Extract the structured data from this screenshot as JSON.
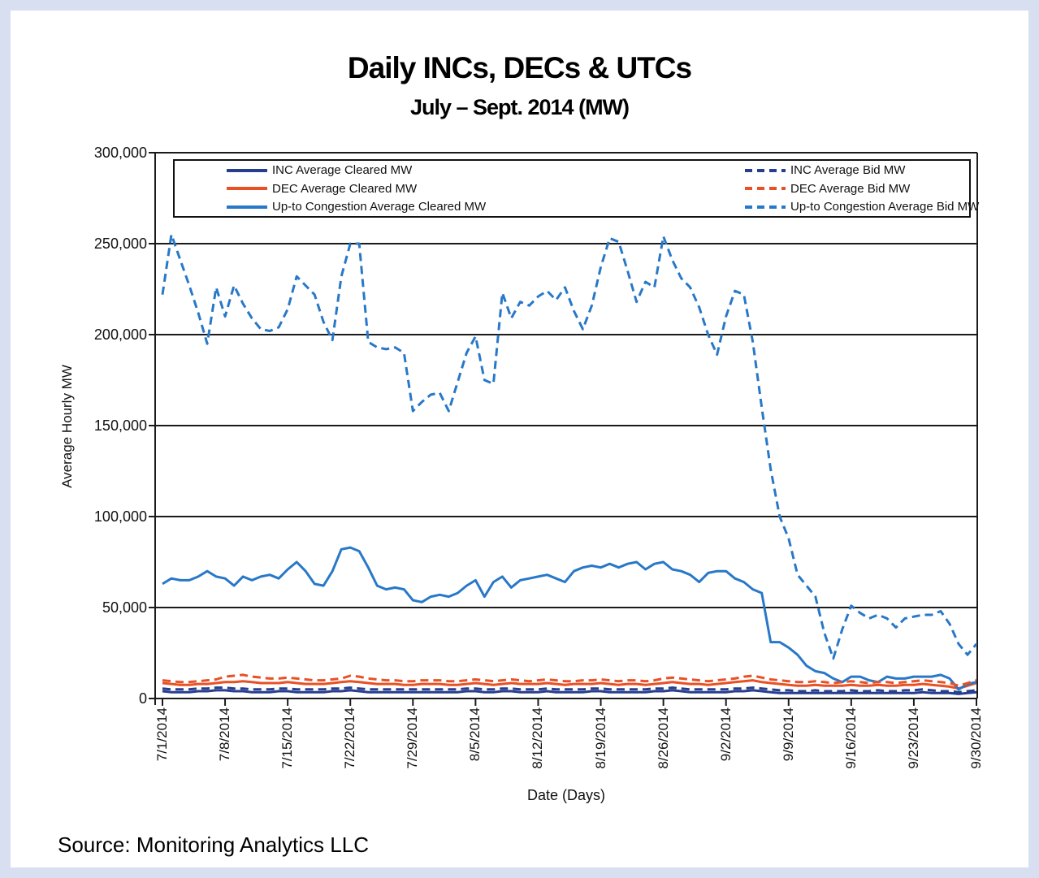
{
  "page": {
    "title": "Daily INCs, DECs & UTCs",
    "subtitle": "July – Sept. 2014 (MW)",
    "source": "Source: Monitoring Analytics LLC"
  },
  "chart_data": {
    "type": "line",
    "title": "Daily INCs, DECs & UTCs",
    "subtitle": "July – Sept. 2014 (MW)",
    "xlabel": "Date (Days)",
    "ylabel": "Average Hourly MW",
    "ylim": [
      0,
      300000
    ],
    "grid": "horizontal",
    "legend_position": "top-inside",
    "axis_color": "#1a1a1a",
    "y_ticks": [
      {
        "value": 0,
        "label": "0"
      },
      {
        "value": 50000,
        "label": "50,000"
      },
      {
        "value": 100000,
        "label": "100,000"
      },
      {
        "value": 150000,
        "label": "150,000"
      },
      {
        "value": 200000,
        "label": "200,000"
      },
      {
        "value": 250000,
        "label": "250,000"
      },
      {
        "value": 300000,
        "label": "300,000"
      }
    ],
    "x_ticks": [
      {
        "day_index": 0,
        "label": "7/1/2014"
      },
      {
        "day_index": 7,
        "label": "7/8/2014"
      },
      {
        "day_index": 14,
        "label": "7/15/2014"
      },
      {
        "day_index": 21,
        "label": "7/22/2014"
      },
      {
        "day_index": 28,
        "label": "7/29/2014"
      },
      {
        "day_index": 35,
        "label": "8/5/2014"
      },
      {
        "day_index": 42,
        "label": "8/12/2014"
      },
      {
        "day_index": 49,
        "label": "8/19/2014"
      },
      {
        "day_index": 56,
        "label": "8/26/2014"
      },
      {
        "day_index": 63,
        "label": "9/2/2014"
      },
      {
        "day_index": 70,
        "label": "9/9/2014"
      },
      {
        "day_index": 77,
        "label": "9/16/2014"
      },
      {
        "day_index": 84,
        "label": "9/23/2014"
      },
      {
        "day_index": 91,
        "label": "9/30/2014"
      }
    ],
    "num_days": 92,
    "x_range_labels": [
      "7/1/2014",
      "9/30/2014"
    ],
    "legend_order": [
      "inc_cleared",
      "inc_bid",
      "dec_cleared",
      "dec_bid",
      "utc_cleared",
      "utc_bid"
    ],
    "series": [
      {
        "id": "inc_cleared",
        "name": "INC Average Cleared MW",
        "color": "#273e8f",
        "dashed": false,
        "values": [
          4000,
          3500,
          3500,
          3500,
          4000,
          4000,
          4500,
          4500,
          4000,
          4000,
          3500,
          3500,
          3500,
          4000,
          4000,
          3500,
          3500,
          3500,
          3500,
          4000,
          4000,
          4500,
          4000,
          3500,
          3500,
          3500,
          3500,
          3500,
          3500,
          3500,
          3500,
          3500,
          3500,
          3500,
          4000,
          4000,
          3500,
          3500,
          4000,
          4000,
          3500,
          3500,
          3500,
          4000,
          3500,
          3500,
          3500,
          3500,
          4000,
          4000,
          3500,
          3500,
          3500,
          3500,
          3500,
          4000,
          4000,
          4500,
          4000,
          3500,
          3500,
          3500,
          3500,
          3500,
          4000,
          4000,
          4500,
          4000,
          3500,
          3000,
          3000,
          3000,
          3000,
          3000,
          3000,
          3000,
          3000,
          3000,
          3000,
          3000,
          3000,
          3000,
          3000,
          3000,
          3000,
          3500,
          3000,
          3000,
          3000,
          2500,
          3000,
          3500
        ]
      },
      {
        "id": "dec_cleared",
        "name": "DEC Average Cleared MW",
        "color": "#e85026",
        "dashed": false,
        "values": [
          8500,
          8000,
          7500,
          7500,
          8000,
          8000,
          8500,
          9000,
          9000,
          9500,
          9000,
          8500,
          8500,
          8500,
          9000,
          8500,
          8000,
          8000,
          8000,
          8500,
          9000,
          9500,
          9000,
          8500,
          8000,
          8000,
          8000,
          7500,
          7500,
          8000,
          8000,
          8000,
          7500,
          7500,
          8000,
          8500,
          8000,
          7500,
          8000,
          8500,
          8000,
          8000,
          8000,
          8500,
          8000,
          7500,
          8000,
          8000,
          8000,
          8500,
          8000,
          7500,
          8000,
          8000,
          7500,
          8000,
          8500,
          9000,
          8500,
          8000,
          8000,
          7500,
          8000,
          8500,
          9000,
          9500,
          10000,
          9000,
          8500,
          8000,
          7500,
          7000,
          7000,
          7500,
          7000,
          7000,
          7000,
          7500,
          7000,
          7000,
          7500,
          7000,
          7000,
          7500,
          7500,
          8000,
          7500,
          7000,
          6500,
          5500,
          7000,
          8500
        ]
      },
      {
        "id": "utc_cleared",
        "name": "Up-to Congestion Average Cleared MW",
        "color": "#2878c8",
        "dashed": false,
        "values": [
          63000,
          66000,
          65000,
          65000,
          67000,
          70000,
          67000,
          66000,
          62000,
          67000,
          65000,
          67000,
          68000,
          66000,
          71000,
          75000,
          70000,
          63000,
          62000,
          70000,
          82000,
          83000,
          81000,
          72000,
          62000,
          60000,
          61000,
          60000,
          54000,
          53000,
          56000,
          57000,
          56000,
          58000,
          62000,
          65000,
          56000,
          64000,
          67000,
          61000,
          65000,
          66000,
          67000,
          68000,
          66000,
          64000,
          70000,
          72000,
          73000,
          72000,
          74000,
          72000,
          74000,
          75000,
          71000,
          74000,
          75000,
          71000,
          70000,
          68000,
          64000,
          69000,
          70000,
          70000,
          66000,
          64000,
          60000,
          58000,
          31000,
          31000,
          28000,
          24000,
          18000,
          15000,
          14000,
          11000,
          9000,
          12000,
          12000,
          10000,
          9000,
          12000,
          11000,
          11000,
          12000,
          12000,
          12000,
          13000,
          11000,
          5000,
          8000,
          9000
        ]
      },
      {
        "id": "inc_bid",
        "name": "INC Average Bid MW",
        "color": "#273e8f",
        "dashed": true,
        "values": [
          5500,
          5000,
          5000,
          5000,
          5500,
          5500,
          6000,
          6000,
          5500,
          5500,
          5000,
          5000,
          5000,
          5500,
          5500,
          5000,
          5000,
          5000,
          5000,
          5500,
          5500,
          6000,
          5500,
          5000,
          5000,
          5000,
          5000,
          5000,
          5000,
          5000,
          5000,
          5000,
          5000,
          5000,
          5500,
          5500,
          5000,
          5000,
          5500,
          5500,
          5000,
          5000,
          5000,
          5500,
          5000,
          5000,
          5000,
          5000,
          5500,
          5500,
          5000,
          5000,
          5000,
          5000,
          5000,
          5500,
          5500,
          6000,
          5500,
          5000,
          5000,
          5000,
          5000,
          5000,
          5500,
          5500,
          6000,
          5500,
          5000,
          4500,
          4500,
          4000,
          4000,
          4500,
          4000,
          4000,
          4000,
          4500,
          4000,
          4000,
          4500,
          4000,
          4000,
          4500,
          4500,
          5000,
          4500,
          4000,
          4000,
          3500,
          4000,
          4500
        ]
      },
      {
        "id": "dec_bid",
        "name": "DEC Average Bid MW",
        "color": "#e85026",
        "dashed": true,
        "values": [
          10000,
          9500,
          9000,
          9000,
          9500,
          10000,
          10500,
          12000,
          12500,
          13000,
          12000,
          11500,
          11000,
          11000,
          11500,
          11000,
          10500,
          10000,
          10000,
          10500,
          11000,
          12500,
          12000,
          11000,
          10500,
          10000,
          10000,
          9500,
          9500,
          10000,
          10000,
          10000,
          9500,
          9500,
          10000,
          10500,
          10000,
          9500,
          10000,
          10500,
          10000,
          9500,
          10000,
          10500,
          10000,
          9500,
          9500,
          10000,
          10000,
          10500,
          10000,
          9500,
          10000,
          10000,
          9500,
          10000,
          11000,
          11500,
          11000,
          10500,
          10000,
          9500,
          10000,
          10500,
          11000,
          12000,
          12500,
          11500,
          10500,
          10000,
          9500,
          9000,
          9000,
          9500,
          9000,
          8500,
          9000,
          9500,
          9000,
          8500,
          9000,
          9000,
          8500,
          9000,
          9500,
          10000,
          9500,
          9000,
          8500,
          7000,
          8500,
          10000
        ]
      },
      {
        "id": "utc_bid",
        "name": "Up-to Congestion Average Bid MW",
        "color": "#2878c8",
        "dashed": true,
        "values": [
          222000,
          255000,
          241000,
          227000,
          212000,
          195000,
          226000,
          210000,
          227000,
          217000,
          209000,
          203000,
          202000,
          204000,
          214000,
          232000,
          227000,
          222000,
          207000,
          197000,
          232000,
          250000,
          250000,
          196000,
          193000,
          192000,
          193000,
          190000,
          158000,
          163000,
          167000,
          168000,
          158000,
          174000,
          190000,
          199000,
          175000,
          173000,
          223000,
          209000,
          218000,
          216000,
          221000,
          224000,
          219000,
          226000,
          213000,
          203000,
          216000,
          237000,
          253000,
          251000,
          235000,
          218000,
          229000,
          226000,
          254000,
          241000,
          231000,
          226000,
          215000,
          200000,
          189000,
          210000,
          224000,
          222000,
          196000,
          160000,
          126000,
          100000,
          88000,
          68000,
          62000,
          56000,
          36000,
          22000,
          38000,
          51000,
          47000,
          44000,
          46000,
          44000,
          39000,
          44000,
          45000,
          46000,
          46000,
          48000,
          41000,
          30000,
          24000,
          30000
        ]
      }
    ]
  }
}
